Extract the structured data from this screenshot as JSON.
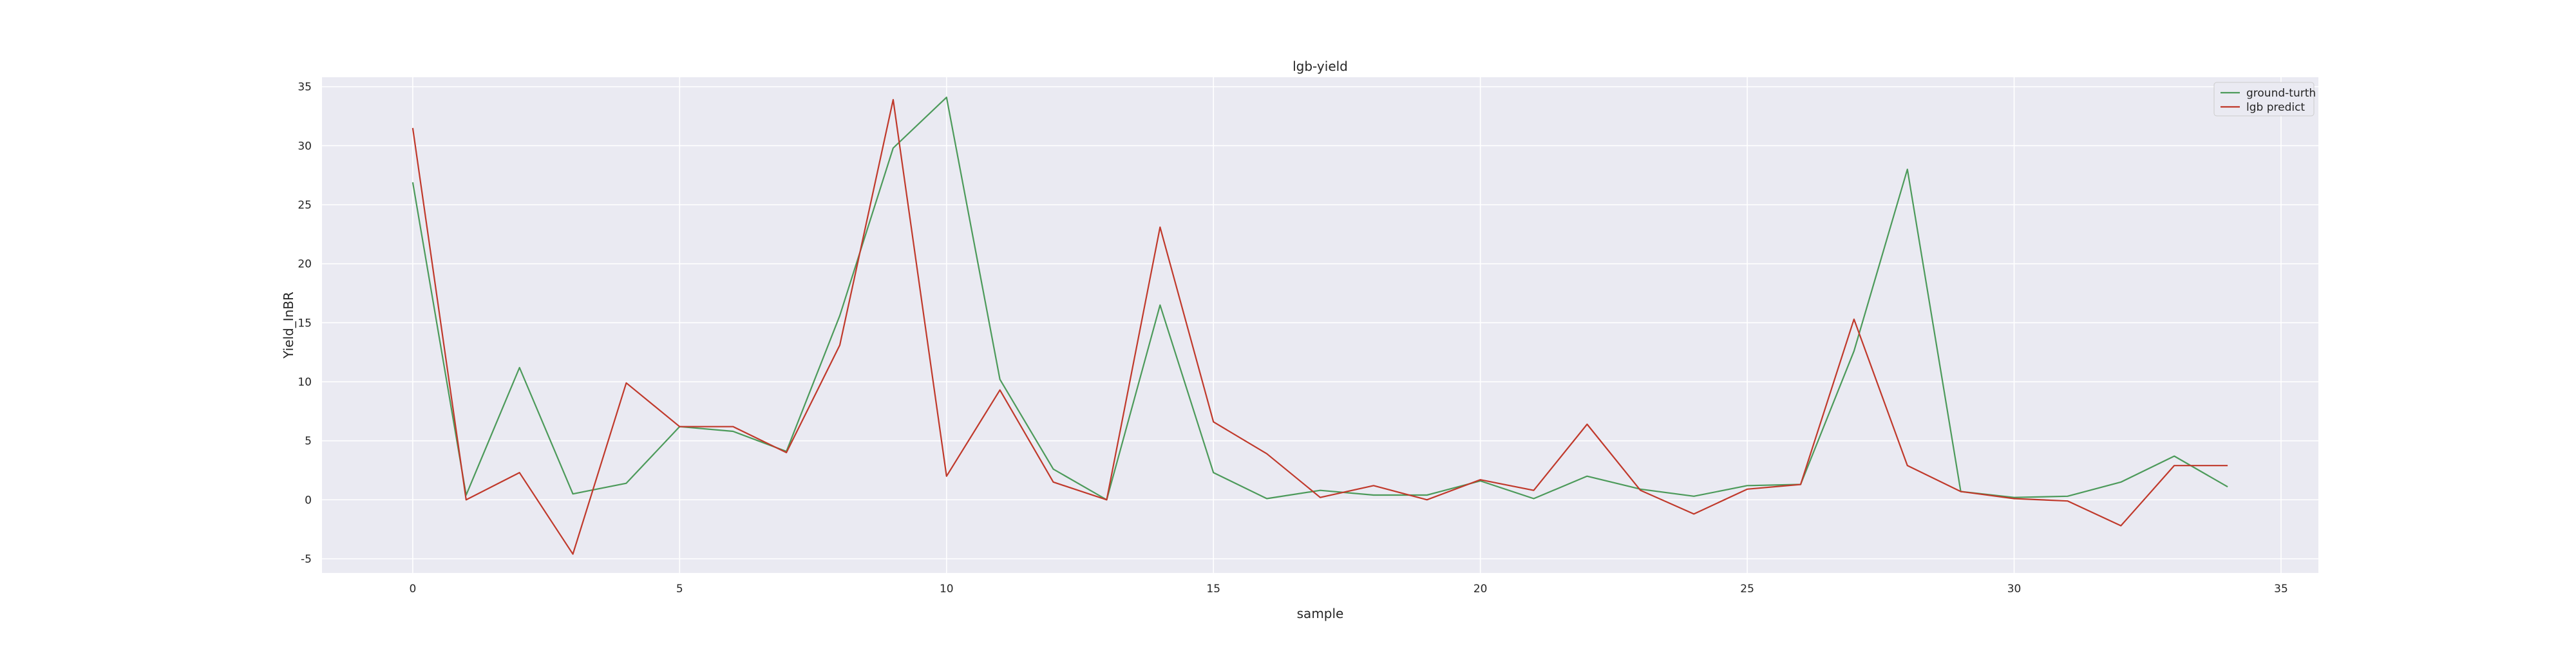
{
  "chart_data": {
    "type": "line",
    "title": "lgb-yield",
    "xlabel": "sample",
    "ylabel": "Yield_InBR",
    "xlim": [
      -1.7,
      35.7
    ],
    "ylim": [
      -6.2,
      35.8
    ],
    "xticks": [
      0,
      5,
      10,
      15,
      20,
      25,
      30,
      35
    ],
    "yticks": [
      -5,
      0,
      5,
      10,
      15,
      20,
      25,
      30,
      35
    ],
    "grid": true,
    "legend_position": "top-right",
    "x": [
      0,
      1,
      2,
      3,
      4,
      5,
      6,
      7,
      8,
      9,
      10,
      11,
      12,
      13,
      14,
      15,
      16,
      17,
      18,
      19,
      20,
      21,
      22,
      23,
      24,
      25,
      26,
      27,
      28,
      29,
      30,
      31,
      32,
      33,
      34
    ],
    "series": [
      {
        "name": "ground-turth",
        "color": "#4c9a5a",
        "values": [
          26.9,
          0.4,
          11.2,
          0.5,
          1.4,
          6.2,
          5.8,
          4.1,
          15.6,
          29.8,
          34.1,
          10.2,
          2.6,
          0.0,
          16.5,
          2.3,
          0.1,
          0.8,
          0.4,
          0.4,
          1.6,
          0.1,
          2.0,
          0.9,
          0.3,
          1.2,
          1.3,
          12.6,
          28.0,
          0.7,
          0.2,
          0.3,
          1.5,
          3.7,
          1.1
        ]
      },
      {
        "name": "lgb predict",
        "color": "#c0392b",
        "values": [
          31.5,
          0.0,
          2.3,
          -4.6,
          9.9,
          6.2,
          6.2,
          4.0,
          13.1,
          33.9,
          2.0,
          9.3,
          1.5,
          0.0,
          23.1,
          6.6,
          3.9,
          0.2,
          1.2,
          0.0,
          1.7,
          0.8,
          6.4,
          0.8,
          -1.2,
          0.9,
          1.3,
          15.3,
          2.9,
          0.7,
          0.1,
          -0.1,
          -2.2,
          2.9,
          2.9
        ]
      }
    ]
  },
  "colors": {
    "plot_background": "#eaeaf2",
    "grid": "#ffffff",
    "text": "#262626"
  }
}
